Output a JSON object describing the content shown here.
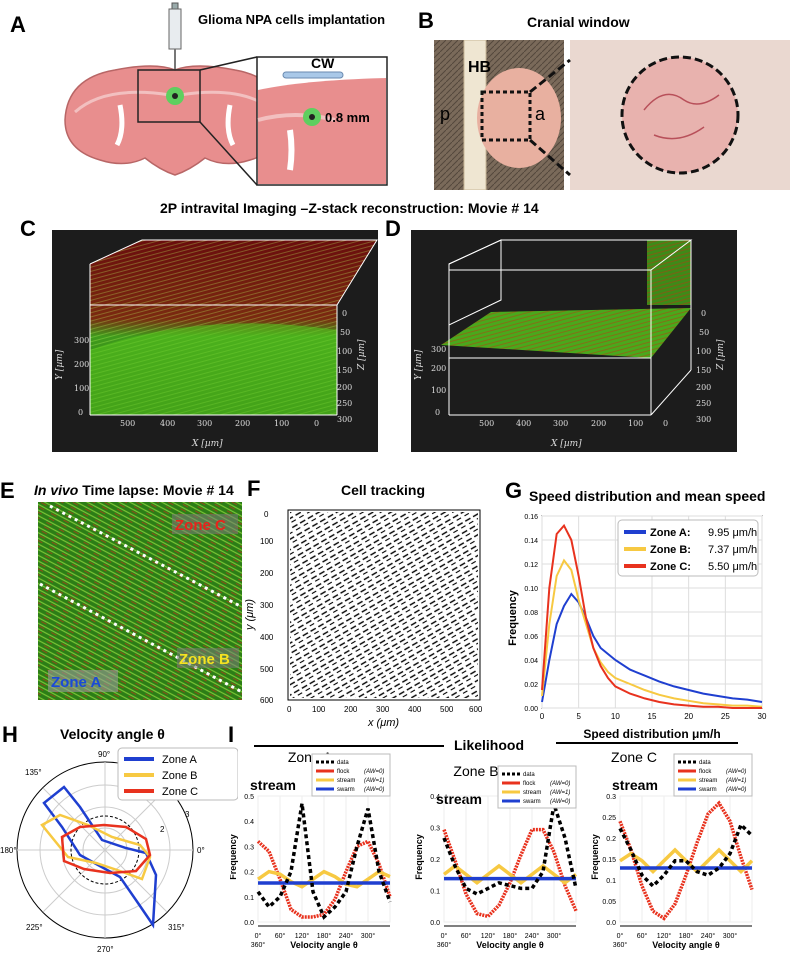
{
  "panels": {
    "A": "A",
    "B": "B",
    "C": "C",
    "D": "D",
    "E": "E",
    "F": "F",
    "G": "G",
    "H": "H",
    "I": "I"
  },
  "panelA": {
    "title": "Glioma NPA cells implantation",
    "cw": "CW",
    "depth": "0.8 mm"
  },
  "panelB": {
    "title": "Cranial window",
    "hb": "HB",
    "p": "p",
    "a": "a"
  },
  "row2_title": "2P intravital Imaging –Z-stack reconstruction: Movie # 14",
  "panelC": {
    "xlabel": "X [µm]",
    "ylabel": "Y [µm]",
    "zlabel": "Z [µm]",
    "xticks": [
      "500",
      "400",
      "300",
      "200",
      "100",
      "0"
    ],
    "yticks": [
      "0",
      "100",
      "200",
      "300"
    ],
    "zticks": [
      "0",
      "50",
      "100",
      "150",
      "200",
      "250",
      "300"
    ]
  },
  "panelD": {
    "xlabel": "X [µm]",
    "ylabel": "Y [µm]",
    "zlabel": "Z [µm]",
    "xticks": [
      "500",
      "400",
      "300",
      "200",
      "100",
      "0"
    ],
    "yticks": [
      "0",
      "100",
      "200",
      "300"
    ],
    "zticks": [
      "0",
      "50",
      "100",
      "150",
      "200",
      "250",
      "300"
    ]
  },
  "panelE": {
    "title_italic": "In vivo",
    "title_rest": " Time lapse: Movie # 14",
    "zoneC": "Zone C",
    "zoneB": "Zone B",
    "zoneA": "Zone A"
  },
  "panelF": {
    "title": "Cell tracking",
    "xlabel": "x (μm)",
    "ylabel": "y (μm)",
    "xticks": [
      "0",
      "100",
      "200",
      "300",
      "400",
      "500",
      "600"
    ],
    "yticks": [
      "0",
      "100",
      "200",
      "300",
      "400",
      "500",
      "600"
    ]
  },
  "panelH": {
    "title": "Velocity angle θ",
    "angles": [
      "90°",
      "135°",
      "180°",
      "225°",
      "270°",
      "315°",
      "0°"
    ],
    "radii": [
      "2",
      "3"
    ],
    "legend": [
      "Zone A",
      "Zone B",
      "Zone C"
    ]
  },
  "panelI": {
    "likelihood": "Likelihood",
    "zones": [
      {
        "title": "Zone A",
        "sub": "stream",
        "yticks": [
          "0.5",
          "0.4",
          "0.3",
          "0.2",
          "0.1",
          "0.0"
        ]
      },
      {
        "title": "Zone B",
        "sub": "stream",
        "yticks": [
          "0.4",
          "0.3",
          "0.2",
          "0.1",
          "0.0"
        ]
      },
      {
        "title": "Zone C",
        "sub": "stream",
        "yticks": [
          "0.3",
          "0.25",
          "0.2",
          "0.15",
          "0.1",
          "0.05",
          "0.0"
        ]
      }
    ],
    "ylabel": "Frequency",
    "xlabel": "Velocity angle θ",
    "xticks": [
      "0°",
      "60°",
      "120°",
      "180°",
      "240°",
      "300°"
    ],
    "x360": "360°",
    "legend": [
      {
        "name": "data",
        "aw": ""
      },
      {
        "name": "flock",
        "aw": "(AW=0)"
      },
      {
        "name": "stream",
        "aw": "(AW=1)"
      },
      {
        "name": "swarm",
        "aw": "(AW=0)"
      }
    ]
  },
  "colors": {
    "zoneA": "#1f3fd0",
    "zoneB": "#f7c942",
    "zoneC": "#e8321e",
    "flock": "#e8321e",
    "stream": "#f7c942",
    "swarm": "#1f3fd0"
  },
  "chart_data": [
    {
      "type": "line",
      "title": "Speed distribution and mean speed",
      "xlabel": "Speed distribution μm/h",
      "ylabel": "Frequency",
      "xlim": [
        0,
        30
      ],
      "ylim": [
        0,
        0.16
      ],
      "xticks": [
        0,
        5,
        10,
        15,
        20,
        25,
        30
      ],
      "yticks": [
        0.0,
        0.02,
        0.04,
        0.06,
        0.08,
        0.1,
        0.12,
        0.14,
        0.16
      ],
      "x": [
        0,
        1,
        2,
        3,
        4,
        5,
        6,
        7,
        8,
        9,
        10,
        12,
        14,
        16,
        18,
        20,
        22,
        24,
        26,
        28,
        30
      ],
      "series": [
        {
          "name": "Zone A:",
          "label": "9.95 μm/h",
          "values": [
            0.005,
            0.04,
            0.07,
            0.085,
            0.095,
            0.088,
            0.075,
            0.06,
            0.05,
            0.045,
            0.04,
            0.032,
            0.027,
            0.022,
            0.018,
            0.015,
            0.012,
            0.01,
            0.008,
            0.007,
            0.005
          ]
        },
        {
          "name": "Zone B:",
          "label": "7.37 μm/h",
          "values": [
            0.01,
            0.07,
            0.11,
            0.123,
            0.115,
            0.09,
            0.07,
            0.05,
            0.038,
            0.03,
            0.025,
            0.02,
            0.015,
            0.011,
            0.008,
            0.006,
            0.004,
            0.003,
            0.002,
            0.002,
            0.001
          ]
        },
        {
          "name": "Zone C:",
          "label": "5.50 μm/h",
          "values": [
            0.015,
            0.1,
            0.145,
            0.152,
            0.14,
            0.11,
            0.075,
            0.05,
            0.035,
            0.025,
            0.018,
            0.012,
            0.008,
            0.005,
            0.003,
            0.002,
            0.001,
            0.001,
            0.0,
            0.0,
            0.0
          ]
        }
      ]
    },
    {
      "type": "line",
      "title": "Zone A stream",
      "xlim": [
        0,
        360
      ],
      "ylim": [
        0,
        0.5
      ],
      "x": [
        0,
        30,
        60,
        90,
        120,
        150,
        180,
        210,
        240,
        270,
        300,
        330,
        360
      ],
      "series": [
        {
          "name": "data",
          "values": [
            0.12,
            0.06,
            0.1,
            0.2,
            0.47,
            0.12,
            0.02,
            0.06,
            0.12,
            0.3,
            0.45,
            0.2,
            0.08
          ]
        },
        {
          "name": "flock",
          "values": [
            0.32,
            0.28,
            0.17,
            0.05,
            0.02,
            0.02,
            0.03,
            0.09,
            0.2,
            0.3,
            0.32,
            0.23,
            0.1
          ]
        },
        {
          "name": "stream",
          "values": [
            0.17,
            0.2,
            0.19,
            0.16,
            0.14,
            0.17,
            0.2,
            0.18,
            0.15,
            0.14,
            0.17,
            0.2,
            0.18
          ]
        },
        {
          "name": "swarm",
          "values": [
            0.155,
            0.155,
            0.155,
            0.155,
            0.155,
            0.155,
            0.155,
            0.155,
            0.155,
            0.155,
            0.155,
            0.155,
            0.155
          ]
        }
      ]
    },
    {
      "type": "line",
      "title": "Zone B stream",
      "xlim": [
        0,
        360
      ],
      "ylim": [
        0,
        0.45
      ],
      "x": [
        0,
        30,
        60,
        90,
        120,
        150,
        180,
        210,
        240,
        270,
        300,
        330,
        360
      ],
      "series": [
        {
          "name": "data",
          "values": [
            0.3,
            0.2,
            0.12,
            0.1,
            0.12,
            0.14,
            0.13,
            0.12,
            0.12,
            0.18,
            0.42,
            0.3,
            0.12
          ]
        },
        {
          "name": "flock",
          "values": [
            0.33,
            0.22,
            0.1,
            0.03,
            0.02,
            0.06,
            0.14,
            0.24,
            0.33,
            0.33,
            0.25,
            0.13,
            0.04
          ]
        },
        {
          "name": "stream",
          "values": [
            0.17,
            0.2,
            0.17,
            0.14,
            0.17,
            0.2,
            0.17,
            0.14,
            0.17,
            0.2,
            0.17,
            0.14,
            0.17
          ]
        },
        {
          "name": "swarm",
          "values": [
            0.155,
            0.155,
            0.155,
            0.155,
            0.155,
            0.155,
            0.155,
            0.155,
            0.155,
            0.155,
            0.155,
            0.155,
            0.155
          ]
        }
      ]
    },
    {
      "type": "line",
      "title": "Zone C stream",
      "xlim": [
        0,
        360
      ],
      "ylim": [
        0,
        0.35
      ],
      "x": [
        0,
        30,
        60,
        90,
        120,
        150,
        180,
        210,
        240,
        270,
        300,
        330,
        360
      ],
      "series": [
        {
          "name": "data",
          "values": [
            0.26,
            0.2,
            0.13,
            0.1,
            0.13,
            0.17,
            0.17,
            0.14,
            0.13,
            0.15,
            0.19,
            0.27,
            0.24
          ]
        },
        {
          "name": "flock",
          "values": [
            0.28,
            0.2,
            0.1,
            0.03,
            0.01,
            0.05,
            0.13,
            0.22,
            0.3,
            0.33,
            0.28,
            0.18,
            0.09
          ]
        },
        {
          "name": "stream",
          "values": [
            0.17,
            0.19,
            0.17,
            0.14,
            0.17,
            0.2,
            0.17,
            0.14,
            0.17,
            0.2,
            0.17,
            0.14,
            0.17
          ]
        },
        {
          "name": "swarm",
          "values": [
            0.15,
            0.15,
            0.15,
            0.15,
            0.15,
            0.15,
            0.15,
            0.15,
            0.15,
            0.15,
            0.15,
            0.15,
            0.15
          ]
        }
      ]
    }
  ]
}
